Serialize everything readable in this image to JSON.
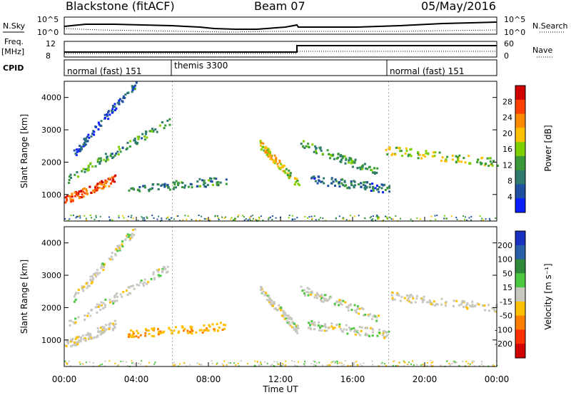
{
  "header": {
    "station": "Blackstone (fitACF)",
    "beam": "Beam 07",
    "date": "05/May/2016"
  },
  "top_panels": {
    "nsky_label": "N.Sky",
    "nsearch_label": "N.Search",
    "nsky_ticks": [
      "10^5",
      "10^0"
    ],
    "nsearch_ticks": [
      "10^5",
      "10^0"
    ],
    "freq_label_1": "Freq.",
    "freq_label_2": "[MHz]",
    "freq_ticks": [
      "12",
      "8"
    ],
    "nave_label": "Nave",
    "nave_ticks": [
      "60",
      "0"
    ],
    "cpid_label": "CPID",
    "cpid_segments": [
      {
        "label": "normal (fast) 151",
        "start_hour": 0.0
      },
      {
        "label": "themis 3300",
        "start_hour": 6.0
      },
      {
        "label": "normal (fast) 151",
        "start_hour": 18.0
      }
    ]
  },
  "power_panel": {
    "ylabel": "Slant Range [km]",
    "colorbar_label": "Power [dB]",
    "colorbar_ticks": [
      "28",
      "24",
      "20",
      "16",
      "12",
      "8",
      "4"
    ],
    "colorbar_colors": [
      "#d00000",
      "#ff4000",
      "#ff8c00",
      "#ffc000",
      "#7fd000",
      "#3a9a3a",
      "#2e7a6e",
      "#1f4fa0",
      "#0a1eff"
    ]
  },
  "velocity_panel": {
    "ylabel": "Slant Range [km]",
    "colorbar_label": "Velocity [m s⁻¹]",
    "colorbar_ticks": [
      "200",
      "100",
      "50",
      "15",
      "-15",
      "-50",
      "-100",
      "-200"
    ],
    "colorbar_colors": [
      "#1a30c0",
      "#2860a8",
      "#2e8a3a",
      "#4cc840",
      "#c8c8c0",
      "#ffc000",
      "#ff8000",
      "#ff3000",
      "#d00000"
    ]
  },
  "chart_data": {
    "type": "heatmap",
    "xlabel": "Time UT",
    "x_ticks": [
      "00:00",
      "04:00",
      "08:00",
      "12:00",
      "16:00",
      "20:00",
      "00:00"
    ],
    "xlim_hours": [
      0,
      24
    ],
    "y_ticks": [
      "1000",
      "2000",
      "3000",
      "4000"
    ],
    "ylim_km": [
      180,
      4500
    ],
    "grid": false,
    "scatter_bands": [
      {
        "name": "early-low",
        "t_start": 0.0,
        "t_end": 2.8,
        "r_start": 850,
        "r_end": 1500,
        "power_db": 26,
        "velocity": -5
      },
      {
        "name": "early-mid",
        "t_start": 0.2,
        "t_end": 5.8,
        "r_start": 1500,
        "r_end": 3300,
        "power_db": 12,
        "velocity": 0
      },
      {
        "name": "early-high",
        "t_start": 0.5,
        "t_end": 4.0,
        "r_start": 2300,
        "r_end": 4500,
        "power_db": 6,
        "velocity": 0
      },
      {
        "name": "midday-patch",
        "t_start": 3.5,
        "t_end": 9.0,
        "r_start": 1200,
        "r_end": 1450,
        "power_db": 10,
        "velocity": -40
      },
      {
        "name": "noon-streak",
        "t_start": 10.8,
        "t_end": 13.0,
        "r_start": 2600,
        "r_end": 1300,
        "power_db": 18,
        "velocity": 0
      },
      {
        "name": "afternoon-upper",
        "t_start": 13.0,
        "t_end": 17.5,
        "r_start": 2600,
        "r_end": 1700,
        "power_db": 12,
        "velocity": 0
      },
      {
        "name": "afternoon-lower",
        "t_start": 13.5,
        "t_end": 18.0,
        "r_start": 1500,
        "r_end": 1200,
        "power_db": 8,
        "velocity": 0
      },
      {
        "name": "evening-band",
        "t_start": 17.8,
        "t_end": 24.0,
        "r_start": 2400,
        "r_end": 2000,
        "power_db": 16,
        "velocity": -5
      }
    ]
  }
}
